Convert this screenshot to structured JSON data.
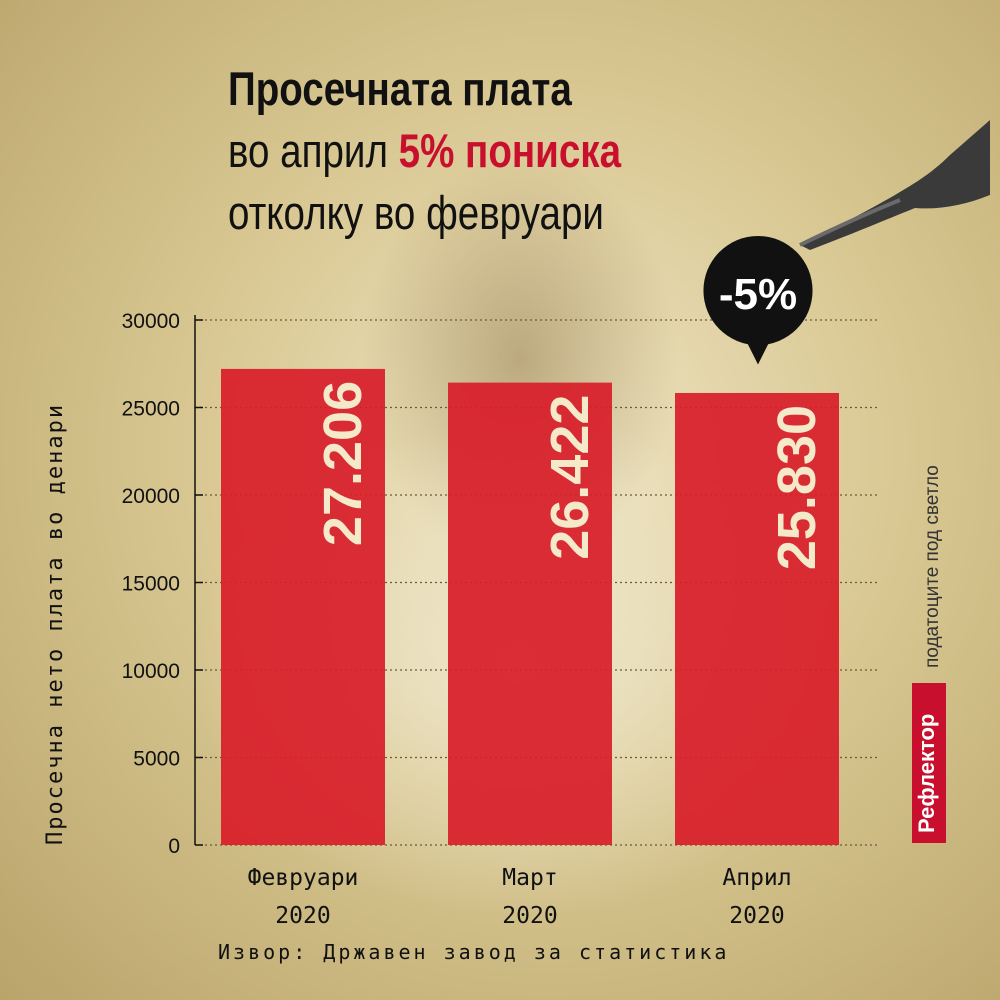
{
  "title": {
    "line1": "Просечната плата",
    "line2_prefix": "во април ",
    "line2_highlight": "5% пониска",
    "line3": "отколку во февруари"
  },
  "badge": {
    "text": "-5%"
  },
  "source": "Извор: Државен завод за статистика",
  "side_note": "податоците под светло",
  "brand": "Рефлектор",
  "colors": {
    "accent": "#c8102e",
    "bar": "#d81e2a",
    "badge": "#111111",
    "background": "#d9c893"
  },
  "chart_data": {
    "type": "bar",
    "title": "",
    "xlabel": "",
    "ylabel": "Просечна нето плата во денари",
    "categories": [
      [
        "Февруари",
        "2020"
      ],
      [
        "Март",
        "2020"
      ],
      [
        "Април",
        "2020"
      ]
    ],
    "values": [
      27206,
      26422,
      25830
    ],
    "value_labels": [
      "27.206",
      "26.422",
      "25.830"
    ],
    "yticks": [
      "0",
      "5000",
      "10000",
      "15000",
      "20000",
      "25000",
      "30000"
    ],
    "ylim": [
      0,
      30000
    ],
    "grid": true
  }
}
